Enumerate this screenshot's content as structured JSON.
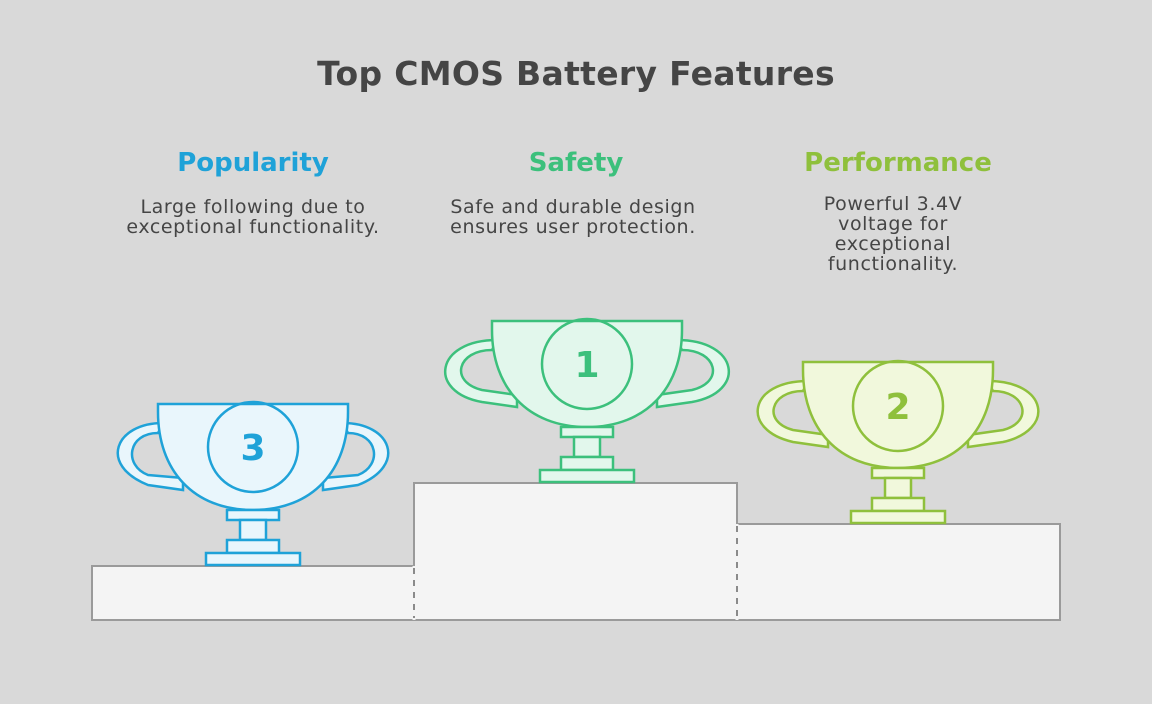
{
  "title": "Top CMOS Battery Features",
  "features": [
    {
      "heading": "Popularity",
      "description": "Large following due to exceptional functionality.",
      "rank": "3",
      "color": "#1fa2d8"
    },
    {
      "heading": "Safety",
      "description": "Safe and durable design ensures user protection.",
      "rank": "1",
      "color": "#3cc07c"
    },
    {
      "heading": "Performance",
      "description": "Powerful 3.4V voltage for exceptional functionality.",
      "rank": "2",
      "color": "#8fc03c"
    }
  ],
  "icons": [
    "trophy-icon",
    "podium"
  ]
}
